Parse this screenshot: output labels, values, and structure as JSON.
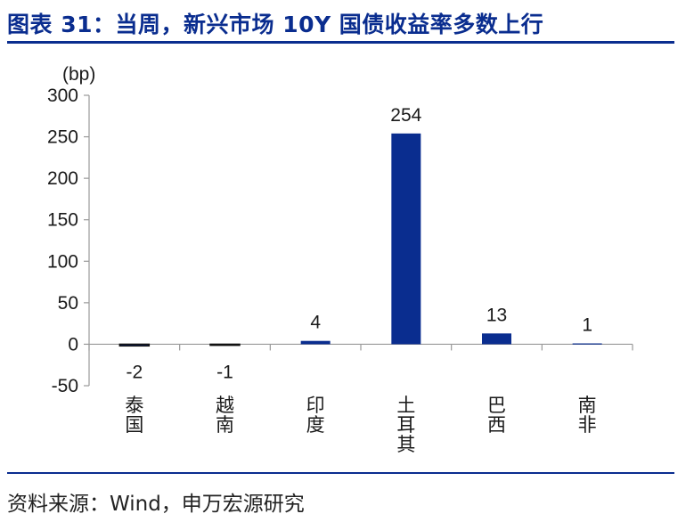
{
  "header": {
    "title": "图表 31：当周，新兴市场 10Y 国债收益率多数上行"
  },
  "footer": {
    "source": "资料来源：Wind，申万宏源研究"
  },
  "colors": {
    "accent": "#0a2d8f",
    "bar": "#0a2d8f"
  },
  "chart_data": {
    "type": "bar",
    "title": "当周，新兴市场 10Y 国债收益率多数上行",
    "ylabel": "(bp)",
    "ylim": [
      -50,
      300
    ],
    "yticks": [
      -50,
      0,
      50,
      100,
      150,
      200,
      250,
      300
    ],
    "categories": [
      "泰国",
      "越南",
      "印度",
      "土耳其",
      "巴西",
      "南非"
    ],
    "values": [
      -2,
      -1,
      4,
      254,
      13,
      1
    ],
    "data_labels": [
      "-2",
      "-1",
      "4",
      "254",
      "13",
      "1"
    ],
    "grid": false,
    "legend": "none"
  }
}
